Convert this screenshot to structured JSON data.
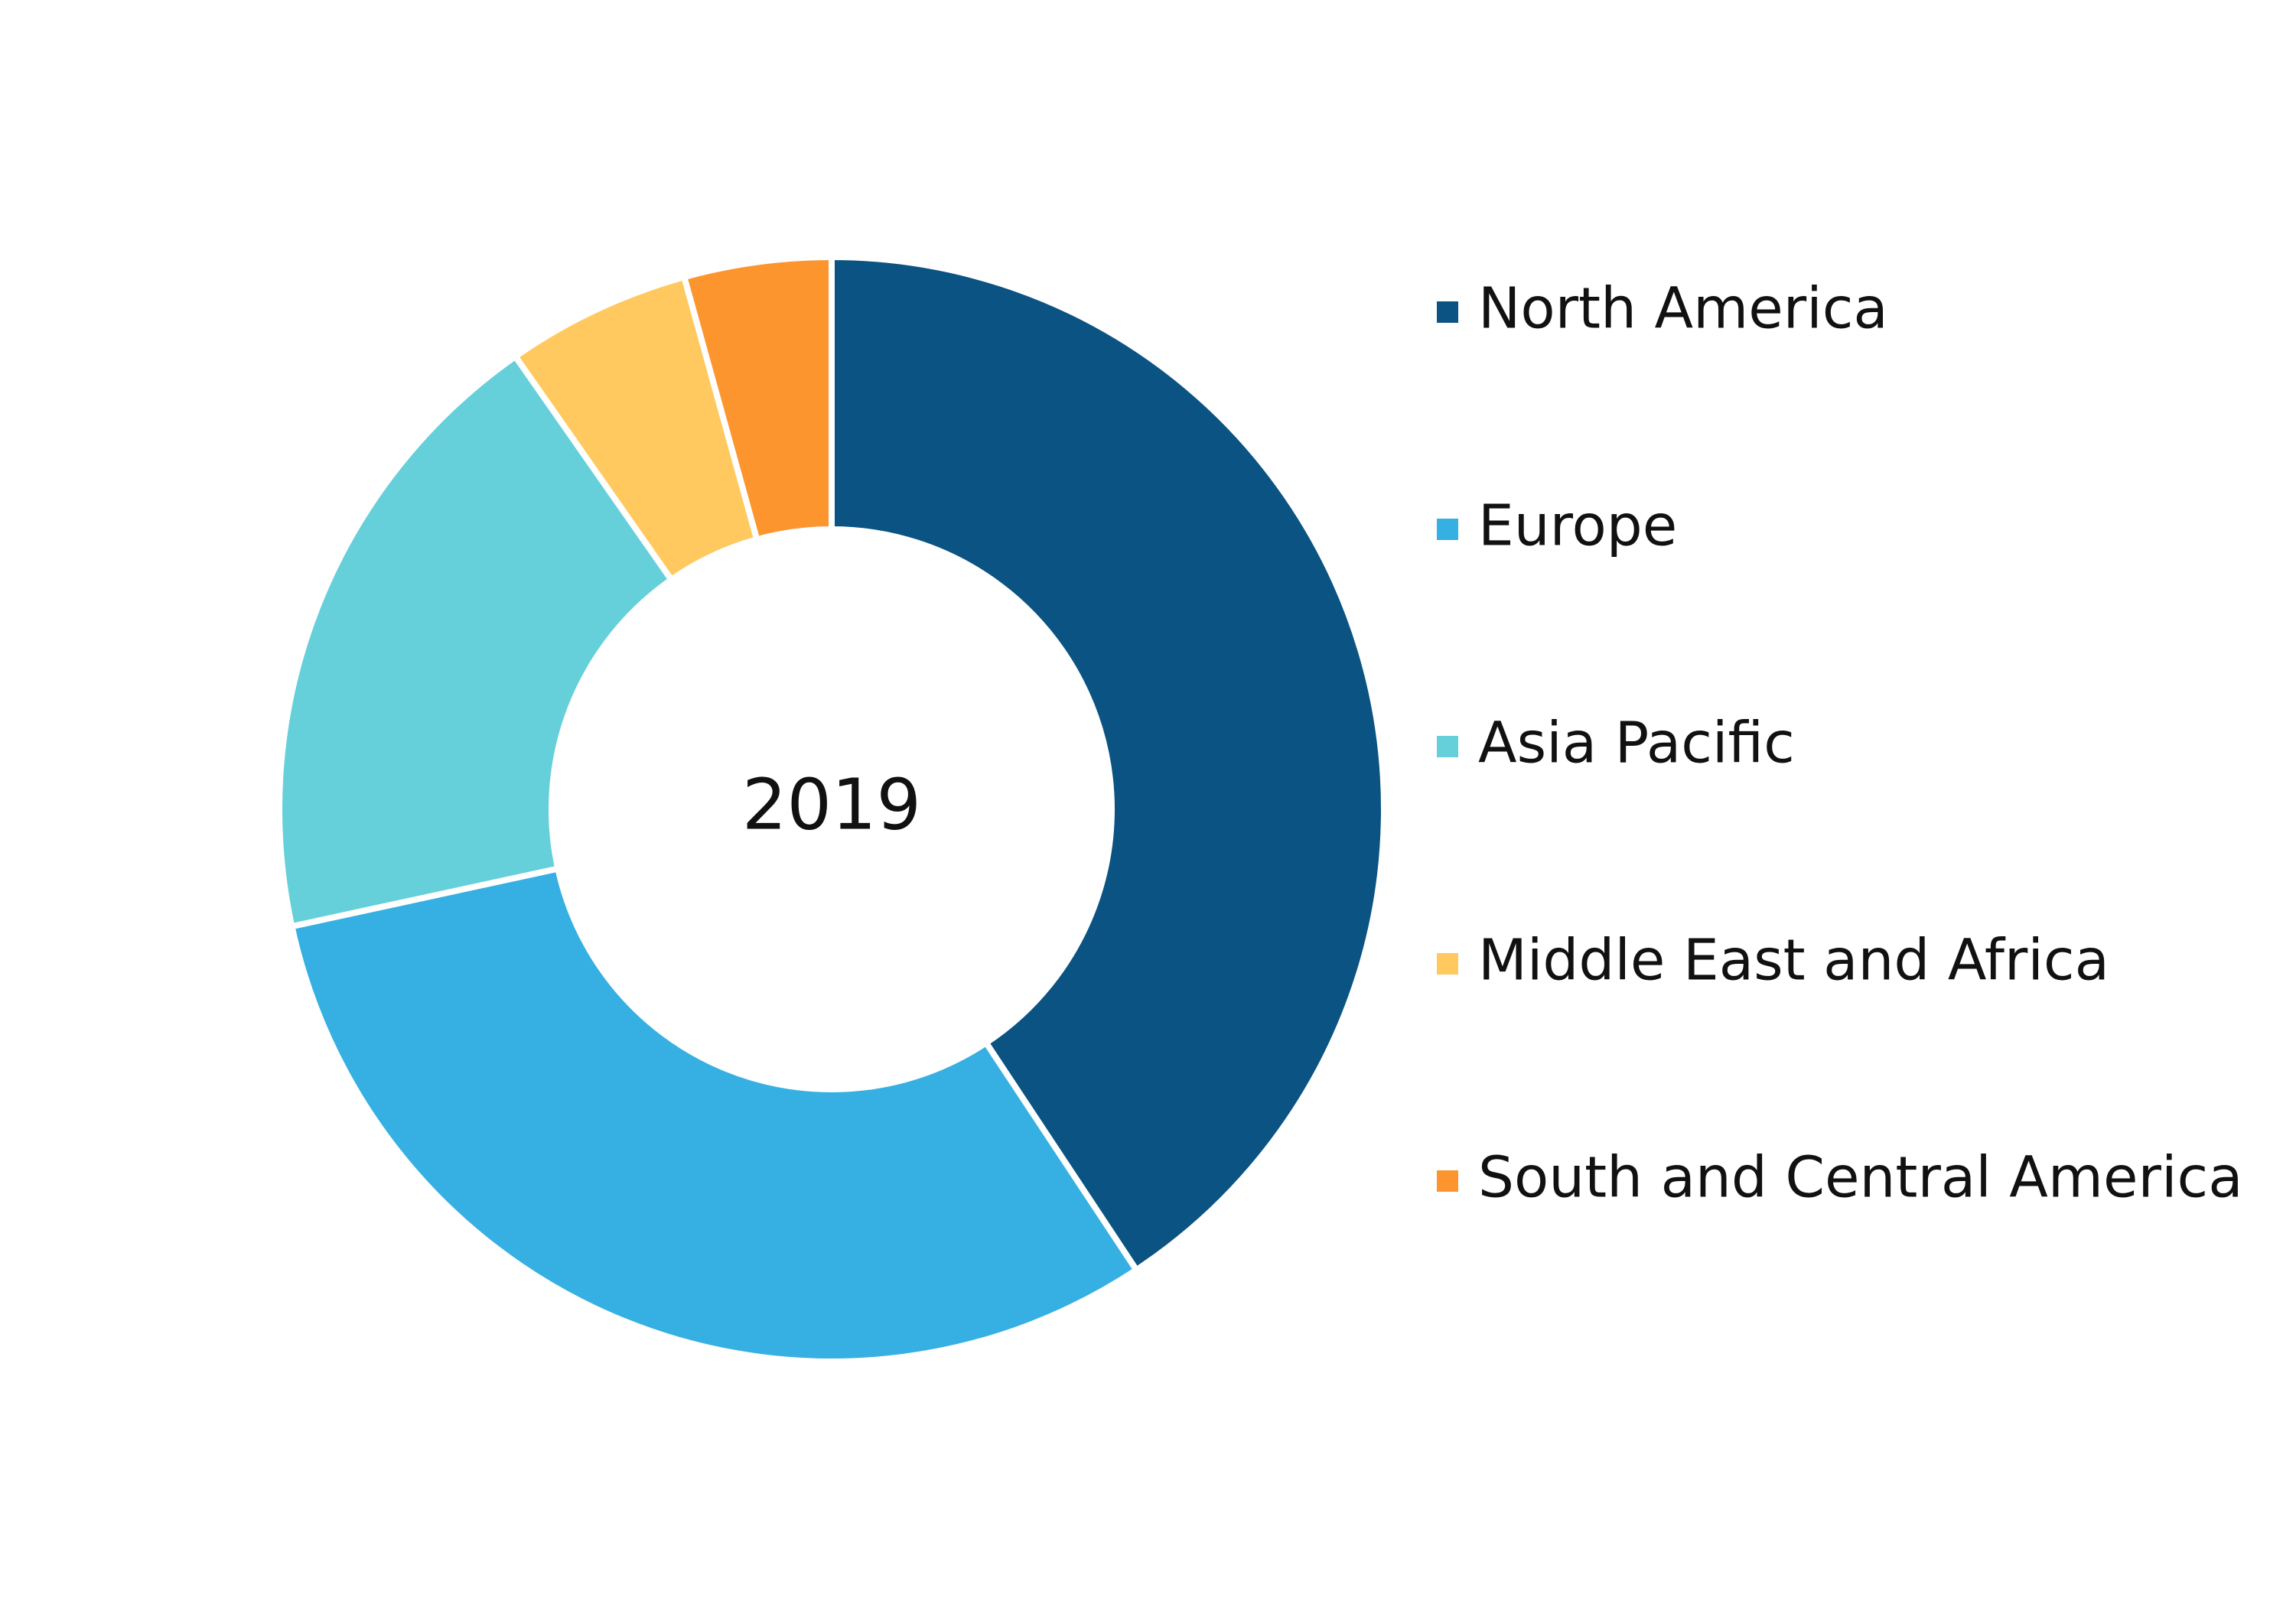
{
  "chart_data": {
    "type": "donut",
    "center_label": "2019",
    "categories": [
      "North America",
      "Europe",
      "Asia Pacific",
      "Middle East and Africa",
      "South and Central America"
    ],
    "values": [
      40.7,
      30.9,
      18.7,
      5.4,
      4.3
    ],
    "colors": [
      "#0a5382",
      "#36b0e2",
      "#65d0da",
      "#ffc95f",
      "#fd952f"
    ],
    "legend": "right"
  }
}
